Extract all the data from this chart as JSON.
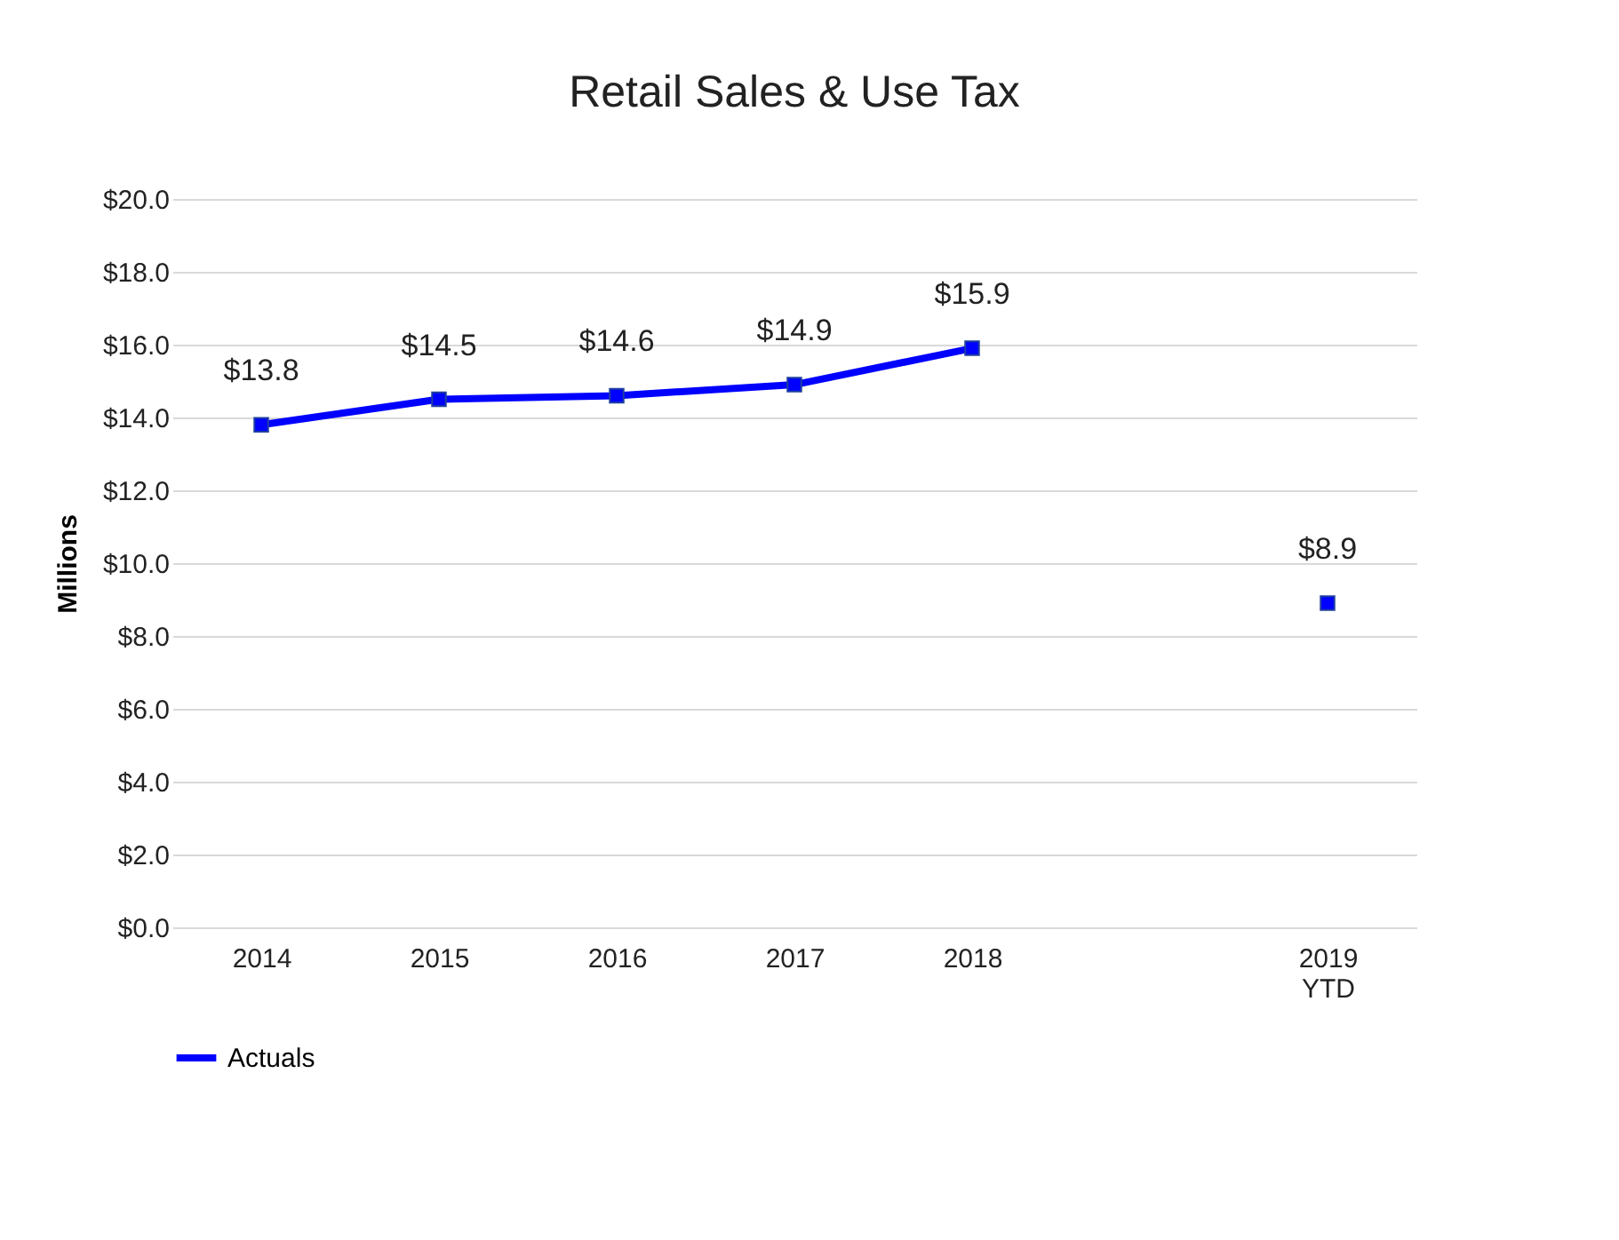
{
  "chart_data": {
    "type": "line",
    "title": "Retail Sales & Use Tax",
    "ylabel": "Millions",
    "categories": [
      "2014",
      "2015",
      "2016",
      "2017",
      "2018",
      null,
      "2019\nYTD"
    ],
    "series": [
      {
        "name": "Actuals",
        "color": "#0000ff",
        "values": [
          13.8,
          14.5,
          14.6,
          14.9,
          15.9,
          null,
          8.9
        ],
        "value_labels": [
          "$13.8",
          "$14.5",
          "$14.6",
          "$14.9",
          "$15.9",
          null,
          "$8.9"
        ]
      }
    ],
    "ylim": [
      0,
      20
    ],
    "yticks": [
      {
        "value": 0,
        "label": "$0.0"
      },
      {
        "value": 2,
        "label": "$2.0"
      },
      {
        "value": 4,
        "label": "$4.0"
      },
      {
        "value": 6,
        "label": "$6.0"
      },
      {
        "value": 8,
        "label": "$8.0"
      },
      {
        "value": 10,
        "label": "$10.0"
      },
      {
        "value": 12,
        "label": "$12.0"
      },
      {
        "value": 14,
        "label": "$14.0"
      },
      {
        "value": 16,
        "label": "$16.0"
      },
      {
        "value": 18,
        "label": "$18.0"
      },
      {
        "value": 20,
        "label": "$20.0"
      }
    ],
    "grid": "y",
    "legend": "bottom",
    "marker": "square",
    "line_style": "solid"
  }
}
